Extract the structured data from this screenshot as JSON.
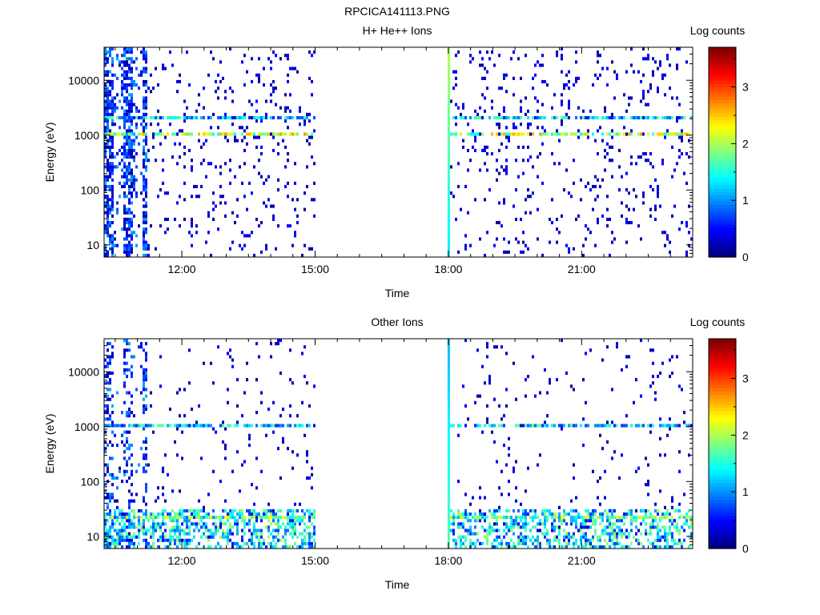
{
  "figure_title": "RPCICA141113.PNG",
  "chart_data": [
    {
      "type": "heatmap",
      "title": "H+ He++ Ions",
      "xlabel": "Time",
      "ylabel": "Energy (eV)",
      "y_scale": "log",
      "ylim": [
        6,
        40000
      ],
      "xlim_hours": [
        10.25,
        23.5
      ],
      "x_ticks": [
        {
          "hour": 12,
          "label": "12:00"
        },
        {
          "hour": 15,
          "label": "15:00"
        },
        {
          "hour": 18,
          "label": "18:00"
        },
        {
          "hour": 21,
          "label": "21:00"
        }
      ],
      "y_ticks": [
        {
          "value": 10,
          "label": "10"
        },
        {
          "value": 100,
          "label": "100"
        },
        {
          "value": 1000,
          "label": "1000"
        },
        {
          "value": 10000,
          "label": "10000"
        }
      ],
      "data_gap_hours": [
        15.0,
        18.0
      ],
      "bands": [
        {
          "energy_ev": 1000,
          "level": 2.2
        },
        {
          "energy_ev": 2000,
          "level": 1.3
        }
      ],
      "colorbar": {
        "label": "Log counts",
        "min": 0,
        "max": 3.7,
        "ticks": [
          0,
          1,
          2,
          3
        ]
      }
    },
    {
      "type": "heatmap",
      "title": "Other Ions",
      "xlabel": "Time",
      "ylabel": "Energy (eV)",
      "y_scale": "log",
      "ylim": [
        6,
        40000
      ],
      "xlim_hours": [
        10.25,
        23.5
      ],
      "x_ticks": [
        {
          "hour": 12,
          "label": "12:00"
        },
        {
          "hour": 15,
          "label": "15:00"
        },
        {
          "hour": 18,
          "label": "18:00"
        },
        {
          "hour": 21,
          "label": "21:00"
        }
      ],
      "y_ticks": [
        {
          "value": 10,
          "label": "10"
        },
        {
          "value": 100,
          "label": "100"
        },
        {
          "value": 1000,
          "label": "1000"
        },
        {
          "value": 10000,
          "label": "10000"
        }
      ],
      "data_gap_hours": [
        15.0,
        18.0
      ],
      "bands": [
        {
          "energy_ev": 1000,
          "level": 1.3
        },
        {
          "energy_ev": 20,
          "level": 1.8
        }
      ],
      "colorbar": {
        "label": "Log counts",
        "min": 0,
        "max": 3.7,
        "ticks": [
          0,
          1,
          2,
          3
        ]
      }
    }
  ]
}
